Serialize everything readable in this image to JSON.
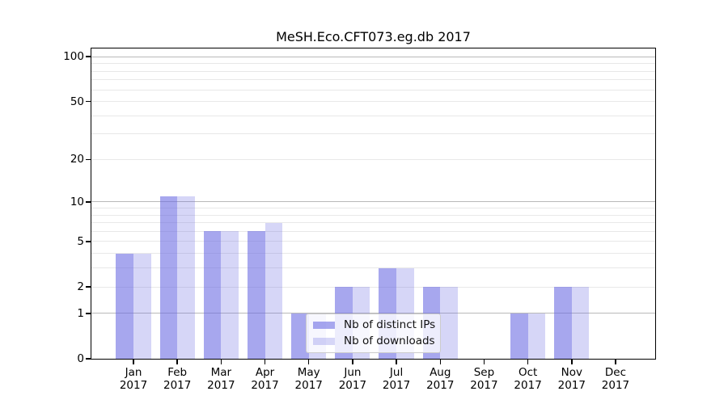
{
  "title": "MeSH.Eco.CFT073.eg.db 2017",
  "chart_data": {
    "type": "bar",
    "title": "MeSH.Eco.CFT073.eg.db 2017",
    "scale": "log1p (symlog-like: position proportional to ln(1+value), 0 at baseline)",
    "ylim": [
      0,
      114
    ],
    "grid": "horizontal only; major gridlines at 1, 10, 100; minor gridlines at 2-9 and 20-90 steps",
    "legend_position": "lower center, inside axes",
    "categories": [
      {
        "month": "Jan",
        "year": "2017"
      },
      {
        "month": "Feb",
        "year": "2017"
      },
      {
        "month": "Mar",
        "year": "2017"
      },
      {
        "month": "Apr",
        "year": "2017"
      },
      {
        "month": "May",
        "year": "2017"
      },
      {
        "month": "Jun",
        "year": "2017"
      },
      {
        "month": "Jul",
        "year": "2017"
      },
      {
        "month": "Aug",
        "year": "2017"
      },
      {
        "month": "Sep",
        "year": "2017"
      },
      {
        "month": "Oct",
        "year": "2017"
      },
      {
        "month": "Nov",
        "year": "2017"
      },
      {
        "month": "Dec",
        "year": "2017"
      }
    ],
    "series": [
      {
        "name": "Nb of distinct IPs",
        "color": "rgba(104,104,226,0.58)",
        "color_on_white": "#a8a8ef",
        "values": [
          4,
          11,
          6,
          6,
          1,
          2,
          3,
          2,
          0,
          1,
          2,
          0
        ]
      },
      {
        "name": "Nb of downloads",
        "color": "rgba(104,104,226,0.27)",
        "color_on_white": "#d8d8f8",
        "values": [
          4,
          11,
          6,
          7,
          1,
          2,
          3,
          2,
          0,
          1,
          2,
          0
        ]
      }
    ],
    "y_axis": {
      "tick_values": [
        0,
        1,
        2,
        5,
        10,
        20,
        50,
        100
      ],
      "tick_labels": [
        "0",
        "1",
        "2",
        "5",
        "10",
        "20",
        "50",
        "100"
      ],
      "major_grid_values": [
        1,
        10,
        100
      ],
      "minor_grid_values": [
        2,
        3,
        4,
        5,
        6,
        7,
        8,
        9,
        20,
        30,
        40,
        50,
        60,
        70,
        80,
        90
      ]
    }
  },
  "colors": {
    "background": "#ffffff",
    "spine": "#000000",
    "major_grid": "#b9b9b9",
    "minor_grid": "#e8e8e8",
    "text": "#000000",
    "legend_border": "#cccccc",
    "legend_background": "rgba(255,255,255,0.8)"
  }
}
